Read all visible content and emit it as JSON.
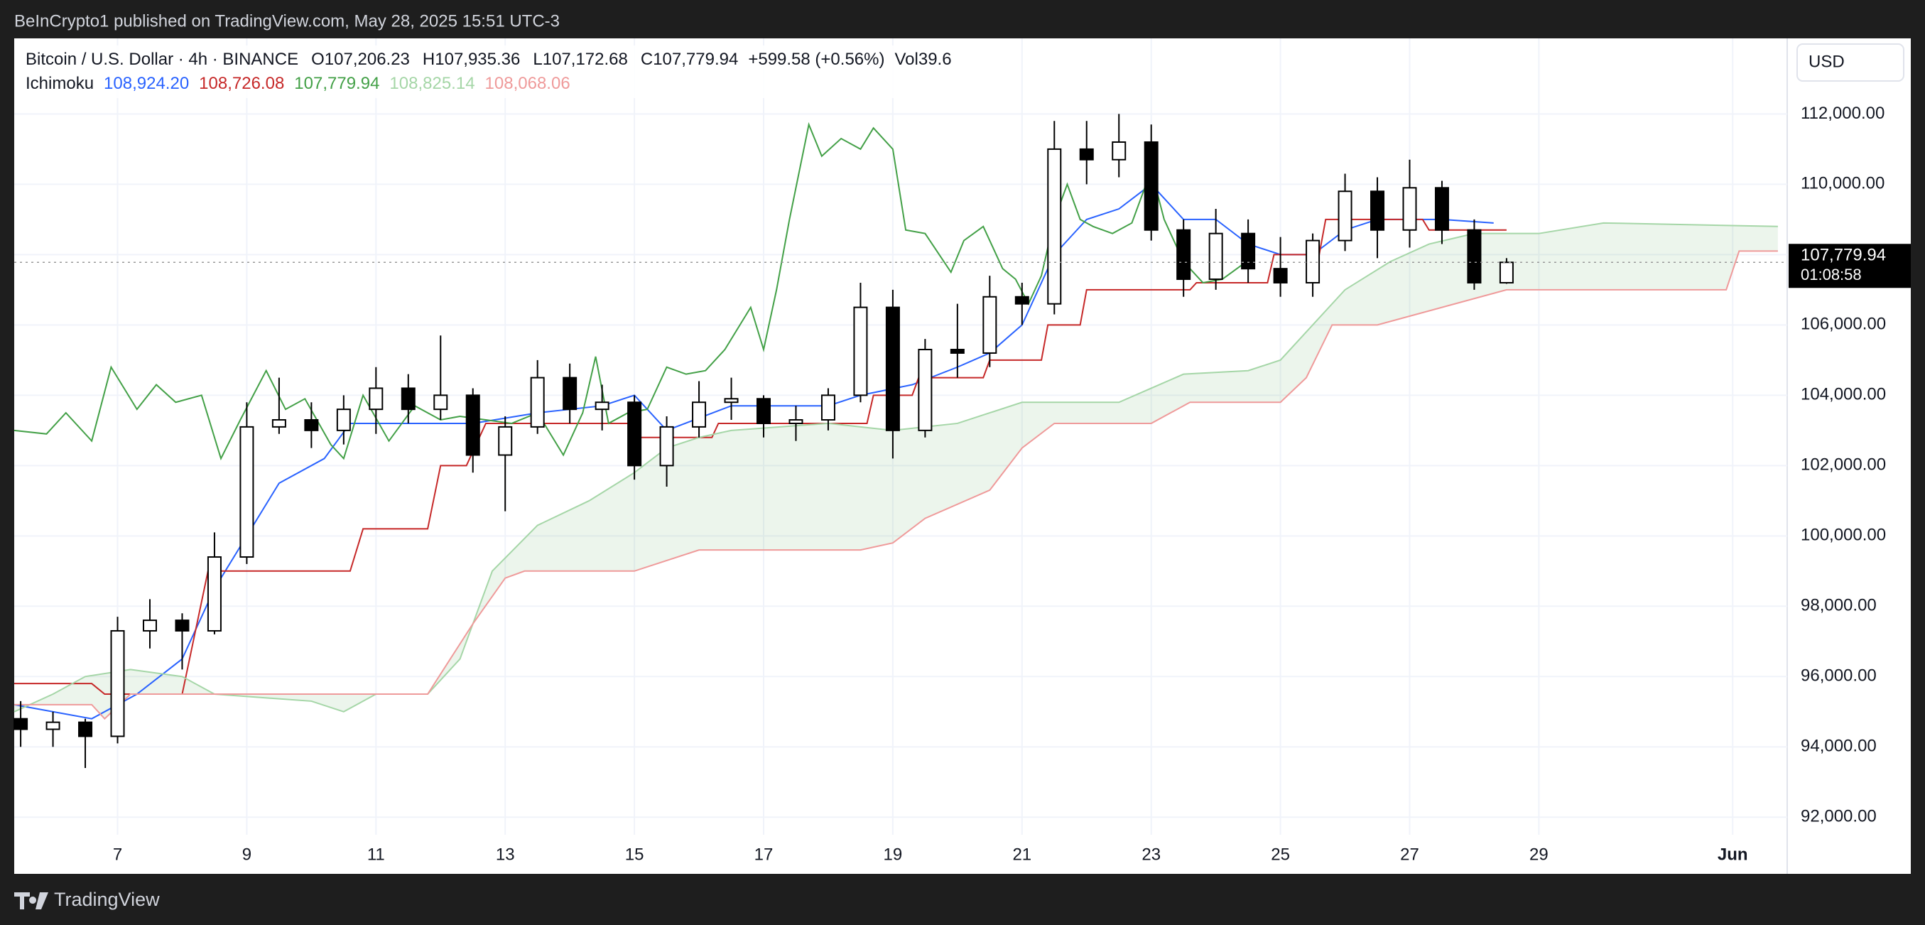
{
  "header": {
    "publisher": "BeInCrypto1 published on TradingView.com, May 28, 2025 15:51 UTC-3",
    "footer_brand": "TradingView"
  },
  "legend": {
    "symbol": "Bitcoin / U.S. Dollar · 4h · BINANCE",
    "ohlc": [
      {
        "key": "O",
        "value": "107,206.23"
      },
      {
        "key": "H",
        "value": "107,935.36"
      },
      {
        "key": "L",
        "value": "107,172.68"
      },
      {
        "key": "C",
        "value": "107,779.94"
      }
    ],
    "change": "+599.58 (+0.56%)",
    "volume": {
      "key": "Vol",
      "value": "39.6"
    },
    "indicator": "Ichimoku",
    "indicator_values": [
      "108,924.20",
      "108,726.08",
      "107,779.94",
      "108,825.14",
      "108,068.06"
    ]
  },
  "price_axis": {
    "currency": "USD",
    "last_price_label": "107,779.94",
    "countdown": "01:08:58"
  },
  "chart_data": {
    "type": "candlestick",
    "x": [
      5.5,
      6,
      6.5,
      7,
      7.5,
      8,
      8.5,
      9,
      9.5,
      10,
      10.5,
      11,
      11.5,
      12,
      12.5,
      13,
      13.5,
      14,
      14.5,
      15,
      15.5,
      16,
      16.5,
      17,
      17.5,
      18,
      18.5,
      19,
      19.5,
      20,
      20.5,
      21,
      21.5,
      22,
      22.5,
      23,
      23.5,
      24,
      24.5,
      25,
      25.5,
      26,
      26.5,
      27,
      27.5,
      28,
      28.5
    ],
    "open": [
      94800,
      94500,
      94700,
      94300,
      97300,
      97600,
      97300,
      99400,
      103100,
      103300,
      103000,
      103600,
      104200,
      103600,
      104000,
      102300,
      103100,
      104500,
      103600,
      103800,
      102000,
      103100,
      103800,
      103900,
      103200,
      103300,
      104000,
      106500,
      103000,
      105300,
      105200,
      106800,
      106600,
      111000,
      110700,
      111200,
      108700,
      107300,
      108600,
      107600,
      107200,
      108400,
      109800,
      108700,
      109900,
      108700,
      107200
    ],
    "high": [
      95300,
      95000,
      94800,
      97700,
      98200,
      97800,
      100100,
      103800,
      104500,
      103800,
      104000,
      104800,
      104600,
      105700,
      104200,
      103400,
      105000,
      104900,
      104300,
      104000,
      103400,
      104400,
      104500,
      104000,
      103700,
      104200,
      107200,
      107000,
      105600,
      106600,
      107400,
      107200,
      111800,
      111800,
      112000,
      111700,
      109000,
      109300,
      109000,
      108500,
      108600,
      110300,
      110200,
      110700,
      110100,
      109000,
      107900
    ],
    "low": [
      94000,
      94000,
      93400,
      94100,
      96800,
      96200,
      97200,
      99200,
      102900,
      102500,
      102600,
      102900,
      103200,
      103300,
      101800,
      100700,
      102900,
      103200,
      103000,
      101600,
      101400,
      102800,
      103300,
      102800,
      102700,
      103000,
      103800,
      102200,
      102800,
      104500,
      104800,
      106000,
      106300,
      110000,
      110200,
      108400,
      106800,
      107000,
      107200,
      106800,
      106800,
      108100,
      107900,
      108200,
      108300,
      107000,
      107170
    ],
    "close": [
      94500,
      94700,
      94300,
      97300,
      97600,
      97300,
      99400,
      103100,
      103300,
      103000,
      103600,
      104200,
      103600,
      104000,
      102300,
      103100,
      104500,
      103600,
      103800,
      102000,
      103100,
      103800,
      103900,
      103200,
      103300,
      104000,
      106500,
      103000,
      105300,
      105200,
      106800,
      106600,
      111000,
      110700,
      111200,
      108700,
      107300,
      108600,
      107600,
      107200,
      108400,
      109800,
      108700,
      109900,
      108700,
      107200,
      107780
    ],
    "up_color": "#ffffff",
    "down_color": "#000000",
    "lines": [
      {
        "color": "#2962ff",
        "x": [
          5.4,
          6.6,
          7.3,
          8,
          8.5,
          9,
          9.5,
          10.2,
          10.6,
          11.5,
          12.5,
          13.5,
          14.5,
          15,
          15.5,
          16.5,
          18,
          18.5,
          19.3,
          20,
          20.5,
          21,
          21.5,
          22,
          22.5,
          23,
          23.5,
          24,
          24.5,
          25,
          25.5,
          26,
          26.5,
          27,
          27.5,
          28.3
        ],
        "values": [
          95200,
          94800,
          95500,
          96500,
          98500,
          100000,
          101500,
          102200,
          103200,
          103200,
          103200,
          103500,
          103700,
          104000,
          103000,
          103700,
          103700,
          104000,
          104300,
          104800,
          105200,
          106000,
          108000,
          109000,
          109300,
          110000,
          109000,
          109000,
          108300,
          108000,
          108000,
          108700,
          109000,
          109000,
          109000,
          108900
        ]
      },
      {
        "color": "#c62828",
        "x": [
          5.4,
          6.6,
          6.8,
          8,
          8.4,
          10.6,
          10.8,
          11.8,
          12,
          12.4,
          12.7,
          15,
          15.1,
          16.2,
          16.3,
          18.6,
          18.7,
          19.3,
          19.4,
          20.4,
          20.5,
          21.3,
          21.4,
          21.9,
          22,
          23.6,
          23.7,
          24.8,
          24.9,
          25.6,
          25.7,
          27.2,
          27.3,
          28.5
        ],
        "values": [
          95800,
          95800,
          95500,
          95500,
          99000,
          99000,
          100200,
          100200,
          102000,
          102000,
          103200,
          103200,
          102800,
          102800,
          103200,
          103200,
          104000,
          104000,
          104500,
          104500,
          105000,
          105000,
          106000,
          106000,
          107000,
          107000,
          107200,
          107200,
          108000,
          108000,
          109000,
          109000,
          108700,
          108700
        ]
      },
      {
        "color": "#43a047",
        "x": [
          5.4,
          5.9,
          6.2,
          6.6,
          6.9,
          7.3,
          7.6,
          7.9,
          8.3,
          8.6,
          8.9,
          9.3,
          9.6,
          9.9,
          10.3,
          10.5,
          10.8,
          11.2,
          11.6,
          12,
          12.3,
          12.7,
          13.1,
          13.5,
          13.9,
          14.2,
          14.4,
          14.6,
          14.9,
          15.2,
          15.5,
          15.8,
          16.1,
          16.4,
          16.8,
          17,
          17.2,
          17.4,
          17.7,
          17.9,
          18.2,
          18.5,
          18.7,
          19,
          19.2,
          19.5,
          19.9,
          20.1,
          20.4,
          20.7,
          20.9,
          21.1,
          21.3,
          21.5,
          21.7,
          21.9,
          22.1,
          22.4,
          22.7,
          23,
          23.2,
          23.5,
          23.8,
          24.1,
          24.4
        ],
        "values": [
          103000,
          102900,
          103500,
          102700,
          104800,
          103600,
          104300,
          103800,
          104000,
          102200,
          103300,
          104700,
          103600,
          103900,
          102600,
          102200,
          104000,
          102700,
          103700,
          103300,
          103400,
          103300,
          103200,
          103500,
          102300,
          103500,
          105100,
          103200,
          103500,
          103600,
          104800,
          104600,
          104700,
          105300,
          106500,
          105300,
          107000,
          109000,
          111700,
          110800,
          111300,
          111000,
          111600,
          111000,
          108700,
          108600,
          107500,
          108400,
          108800,
          107600,
          107300,
          106600,
          107400,
          109000,
          110000,
          109000,
          108800,
          108600,
          108900,
          110400,
          109000,
          107800,
          107200,
          107300,
          107700
        ]
      },
      {
        "color": "#a5d6a7",
        "x": [
          5.4,
          6,
          6.5,
          7.2,
          8,
          8.5,
          10,
          10.5,
          11,
          11.8,
          12.3,
          12.8,
          13.5,
          14.3,
          15,
          15.5,
          16,
          16.5,
          18,
          19,
          20,
          20.5,
          21,
          22.5,
          23,
          23.5,
          24.5,
          25,
          25.5,
          26,
          26.7,
          27.3,
          28,
          29,
          30,
          32.7
        ],
        "values": [
          95000,
          95500,
          96000,
          96200,
          96000,
          95500,
          95300,
          95000,
          95500,
          95500,
          96500,
          99000,
          100300,
          101000,
          101800,
          102500,
          102800,
          103000,
          103200,
          103000,
          103200,
          103500,
          103800,
          103800,
          104200,
          104600,
          104700,
          105000,
          106000,
          107000,
          107800,
          108300,
          108600,
          108600,
          108900,
          108800
        ]
      },
      {
        "color": "#ef9a9a",
        "x": [
          5.4,
          6.6,
          6.8,
          7.2,
          8,
          10.5,
          11.8,
          12.5,
          13,
          13.3,
          15,
          16,
          18.5,
          19,
          19.5,
          20.5,
          21,
          21.5,
          23,
          23.6,
          25,
          25.4,
          25.8,
          26.5,
          28.5,
          31.9,
          32.1,
          32.7
        ],
        "values": [
          95200,
          95200,
          94800,
          95500,
          95500,
          95500,
          95500,
          97500,
          98800,
          99000,
          99000,
          99600,
          99600,
          99800,
          100500,
          101300,
          102500,
          103200,
          103200,
          103800,
          103800,
          104500,
          106000,
          106000,
          107000,
          107000,
          108100,
          108100
        ]
      }
    ],
    "cloud_color": "#43a047",
    "xlim": [
      5.4,
      32.8
    ],
    "ylim": [
      91500,
      114150
    ],
    "xticks": [
      7,
      9,
      11,
      13,
      15,
      17,
      19,
      21,
      23,
      25,
      27,
      29,
      {
        "value": 32,
        "label": "Jun"
      }
    ],
    "yticks": [
      {
        "value": 92000,
        "label": "92,000.00"
      },
      {
        "value": 94000,
        "label": "94,000.00"
      },
      {
        "value": 96000,
        "label": "96,000.00"
      },
      {
        "value": 98000,
        "label": "98,000.00"
      },
      {
        "value": 100000,
        "label": "100,000.00"
      },
      {
        "value": 102000,
        "label": "102,000.00"
      },
      {
        "value": 104000,
        "label": "104,000.00"
      },
      {
        "value": 106000,
        "label": "106,000.00"
      },
      {
        "value": 108000,
        "label": "108,000.00"
      },
      {
        "value": 110000,
        "label": "110,000.00"
      },
      {
        "value": 112000,
        "label": "112,000.00"
      }
    ],
    "grid": true
  }
}
